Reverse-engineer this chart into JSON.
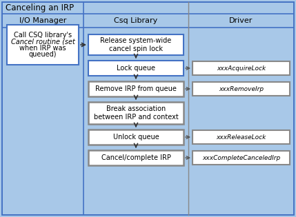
{
  "title": "Canceling an IRP",
  "col_headers": [
    "I/O Manager",
    "Csq Library",
    "Driver"
  ],
  "bg_color": "#a8c8e8",
  "csq_flow": [
    {
      "text": "Release system-wide\ncancel spin lock",
      "border": "#4472c4",
      "lw": 1.5
    },
    {
      "text": "Lock queue",
      "border": "#4472c4",
      "lw": 1.5
    },
    {
      "text": "Remove IRP from queue",
      "border": "#888888",
      "lw": 1.8
    },
    {
      "text": "Break association\nbetween IRP and context",
      "border": "#888888",
      "lw": 1.8
    },
    {
      "text": "Unlock queue",
      "border": "#888888",
      "lw": 1.8
    },
    {
      "text": "Cancel/complete IRP",
      "border": "#888888",
      "lw": 1.8
    }
  ],
  "driver_boxes": [
    {
      "text": "xxxAcquireLock",
      "row": 1,
      "border": "#888888",
      "lw": 1.5
    },
    {
      "text": "xxxRemoveIrp",
      "row": 2,
      "border": "#888888",
      "lw": 1.5
    },
    {
      "text": "xxxReleaseLock",
      "row": 4,
      "border": "#888888",
      "lw": 1.5
    },
    {
      "text": "xxxCompleteCanceledIrp",
      "row": 5,
      "border": "#888888",
      "lw": 1.5
    }
  ],
  "io_box_border": "#4472c4",
  "outer_border": "#4472c4",
  "divider_color": "#4472c4",
  "col2_divider": "#888888"
}
